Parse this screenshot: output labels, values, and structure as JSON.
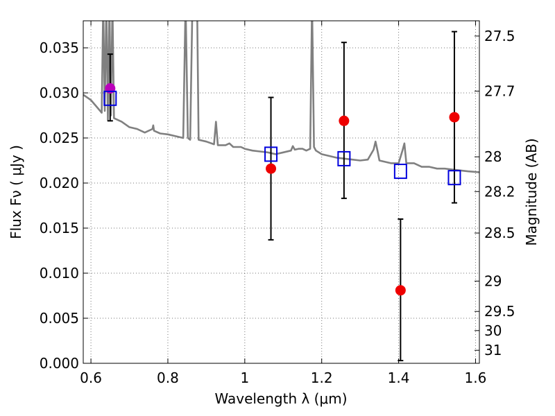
{
  "chart_data": {
    "type": "scatter",
    "title": "",
    "xlabel": "Wavelength  λ (μm)",
    "ylabel": "Flux  Fν  ( μJy )",
    "ylabel_right": "Magnitude (AB)",
    "xlim": [
      0.58,
      1.61
    ],
    "ylim": [
      0.0,
      0.038
    ],
    "grid": true,
    "grid_style": "dotted",
    "x_ticks": [
      {
        "value": 0.6,
        "label": "0.6"
      },
      {
        "value": 0.8,
        "label": "0.8"
      },
      {
        "value": 1.0,
        "label": "1"
      },
      {
        "value": 1.2,
        "label": "1.2"
      },
      {
        "value": 1.4,
        "label": "1.4"
      },
      {
        "value": 1.6,
        "label": "1.6"
      }
    ],
    "y_ticks": [
      {
        "value": 0.0,
        "label": "0.000"
      },
      {
        "value": 0.005,
        "label": "0.005"
      },
      {
        "value": 0.01,
        "label": "0.010"
      },
      {
        "value": 0.015,
        "label": "0.015"
      },
      {
        "value": 0.02,
        "label": "0.020"
      },
      {
        "value": 0.025,
        "label": "0.025"
      },
      {
        "value": 0.03,
        "label": "0.030"
      },
      {
        "value": 0.035,
        "label": "0.035"
      }
    ],
    "y_right_ticks": [
      {
        "value": 27.5,
        "label": "27.5"
      },
      {
        "value": 27.7,
        "label": "27.7"
      },
      {
        "value": 28.0,
        "label": "28"
      },
      {
        "value": 28.2,
        "label": "28.2"
      },
      {
        "value": 28.5,
        "label": "28.5"
      },
      {
        "value": 29.0,
        "label": "29"
      },
      {
        "value": 29.5,
        "label": "29.5"
      },
      {
        "value": 30.0,
        "label": "30"
      },
      {
        "value": 31.0,
        "label": "31"
      }
    ],
    "series": [
      {
        "type": "line",
        "color": "#808080",
        "points": [
          [
            0.58,
            0.0298
          ],
          [
            0.6,
            0.0292
          ],
          [
            0.62,
            0.0282
          ],
          [
            0.628,
            0.0278
          ],
          [
            0.632,
            0.04
          ],
          [
            0.636,
            0.028
          ],
          [
            0.64,
            0.04
          ],
          [
            0.644,
            0.027
          ],
          [
            0.648,
            0.04
          ],
          [
            0.652,
            0.0275
          ],
          [
            0.656,
            0.04
          ],
          [
            0.66,
            0.0272
          ],
          [
            0.68,
            0.0268
          ],
          [
            0.7,
            0.0262
          ],
          [
            0.72,
            0.026
          ],
          [
            0.74,
            0.0256
          ],
          [
            0.76,
            0.026
          ],
          [
            0.762,
            0.0264
          ],
          [
            0.764,
            0.0258
          ],
          [
            0.78,
            0.0255
          ],
          [
            0.8,
            0.0254
          ],
          [
            0.82,
            0.0252
          ],
          [
            0.84,
            0.025
          ],
          [
            0.846,
            0.04
          ],
          [
            0.852,
            0.025
          ],
          [
            0.858,
            0.0248
          ],
          [
            0.864,
            0.04
          ],
          [
            0.876,
            0.04
          ],
          [
            0.88,
            0.0248
          ],
          [
            0.9,
            0.0246
          ],
          [
            0.92,
            0.0243
          ],
          [
            0.925,
            0.0268
          ],
          [
            0.93,
            0.0242
          ],
          [
            0.95,
            0.0242
          ],
          [
            0.96,
            0.0244
          ],
          [
            0.97,
            0.024
          ],
          [
            0.99,
            0.024
          ],
          [
            1.0,
            0.0238
          ],
          [
            1.02,
            0.0236
          ],
          [
            1.04,
            0.0235
          ],
          [
            1.06,
            0.0234
          ],
          [
            1.08,
            0.0232
          ],
          [
            1.1,
            0.0234
          ],
          [
            1.12,
            0.0236
          ],
          [
            1.125,
            0.0241
          ],
          [
            1.13,
            0.0237
          ],
          [
            1.14,
            0.0238
          ],
          [
            1.15,
            0.0238
          ],
          [
            1.16,
            0.0236
          ],
          [
            1.17,
            0.0238
          ],
          [
            1.175,
            0.04
          ],
          [
            1.18,
            0.024
          ],
          [
            1.185,
            0.0236
          ],
          [
            1.2,
            0.0232
          ],
          [
            1.22,
            0.023
          ],
          [
            1.24,
            0.0228
          ],
          [
            1.28,
            0.0226
          ],
          [
            1.3,
            0.0225
          ],
          [
            1.32,
            0.0226
          ],
          [
            1.335,
            0.0237
          ],
          [
            1.34,
            0.0246
          ],
          [
            1.345,
            0.0236
          ],
          [
            1.35,
            0.0225
          ],
          [
            1.38,
            0.0222
          ],
          [
            1.4,
            0.0222
          ],
          [
            1.41,
            0.0236
          ],
          [
            1.415,
            0.0244
          ],
          [
            1.42,
            0.0222
          ],
          [
            1.44,
            0.0222
          ],
          [
            1.46,
            0.0218
          ],
          [
            1.48,
            0.0218
          ],
          [
            1.5,
            0.0216
          ],
          [
            1.52,
            0.0216
          ],
          [
            1.54,
            0.0215
          ],
          [
            1.56,
            0.0214
          ],
          [
            1.58,
            0.0213
          ],
          [
            1.61,
            0.0212
          ]
        ]
      },
      {
        "type": "scatter",
        "marker": "circle",
        "color": "#ee0000",
        "points": [
          {
            "x": 1.068,
            "y": 0.0216,
            "yerr": [
              0.0137,
              0.0295
            ]
          },
          {
            "x": 1.258,
            "y": 0.0269,
            "yerr": [
              0.0183,
              0.0356
            ]
          },
          {
            "x": 1.405,
            "y": 0.0081,
            "yerr": [
              0.0003,
              0.016
            ]
          },
          {
            "x": 1.545,
            "y": 0.0273,
            "yerr": [
              0.0178,
              0.0368
            ]
          }
        ]
      },
      {
        "type": "scatter",
        "marker": "circle",
        "color": "#bb00bb",
        "points": [
          {
            "x": 0.65,
            "y": 0.0305,
            "yerr": [
              0.0269,
              0.0343
            ]
          }
        ]
      },
      {
        "type": "scatter",
        "marker": "square-open",
        "color": "#0000dd",
        "points": [
          {
            "x": 0.65,
            "y": 0.0294
          },
          {
            "x": 1.068,
            "y": 0.0232
          },
          {
            "x": 1.258,
            "y": 0.0227
          },
          {
            "x": 1.405,
            "y": 0.0213
          },
          {
            "x": 1.545,
            "y": 0.0206
          }
        ]
      }
    ]
  }
}
